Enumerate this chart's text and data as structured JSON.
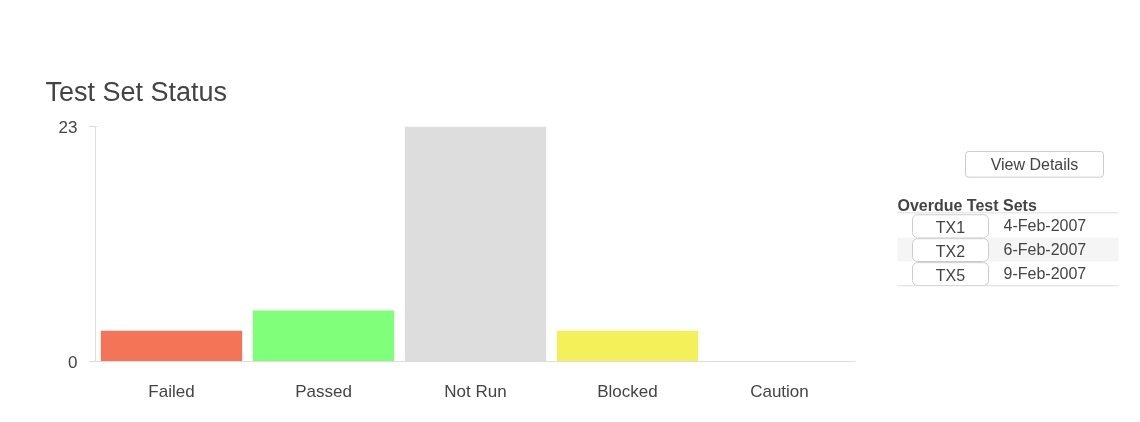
{
  "chart_data": {
    "type": "bar",
    "title": "Test Set Status",
    "categories": [
      "Failed",
      "Passed",
      "Not Run",
      "Blocked",
      "Caution"
    ],
    "values": [
      3,
      5,
      23,
      3,
      0
    ],
    "colors": [
      "#f47458",
      "#80ff7a",
      "#dddddd",
      "#f4f05a",
      "#dddddd"
    ],
    "ylim": [
      0,
      23
    ],
    "yticks": [
      0,
      23
    ],
    "grid": false,
    "annotations": [
      "View Details",
      "Overdue Test Sets",
      "TX1",
      "4-Feb-2007",
      "TX2",
      "6-Feb-2007",
      "TX5",
      "9-Feb-2007"
    ]
  }
}
